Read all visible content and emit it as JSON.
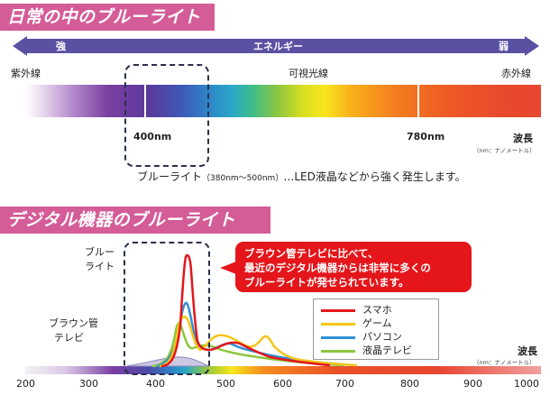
{
  "section1": {
    "title": "日常の中のブルーライト",
    "energy_arrow": {
      "left": "強",
      "center": "エネルギー",
      "right": "弱",
      "color": "#5b51a3"
    },
    "regions": {
      "uv": "紫外線",
      "visible": "可視光線",
      "ir": "赤外線"
    },
    "wavelengths": {
      "w400": "400nm",
      "w780": "780nm"
    },
    "axis_label": "波長",
    "unit_note": "（nm：ナノメートル）",
    "note_main": "ブルーライト",
    "note_range": "（380nm〜500nm）",
    "note_rest": "…LED液晶などから強く発生します。"
  },
  "section2": {
    "title": "デジタル機器のブルーライト",
    "blue_light_label_1": "ブルー",
    "blue_light_label_2": "ライト",
    "crt_label_1": "ブラウン管",
    "crt_label_2": "テレビ",
    "callout": [
      "ブラウン管テレビに比べて、",
      "最近のデジタル機器からは非常に多くの",
      "ブルーライトが発せられています。"
    ],
    "legend": [
      {
        "name": "スマホ",
        "color": "#e4161b"
      },
      {
        "name": "ゲーム",
        "color": "#f5c518"
      },
      {
        "name": "パソコン",
        "color": "#2f8fd6"
      },
      {
        "name": "液晶テレビ",
        "color": "#8cc63f"
      }
    ],
    "axis_label": "波長",
    "unit_note": "（nm：ナノメートル）",
    "ticks": [
      "200",
      "300",
      "400",
      "500",
      "600",
      "700",
      "800",
      "900",
      "1000"
    ]
  },
  "banner_color": "#d45c97"
}
